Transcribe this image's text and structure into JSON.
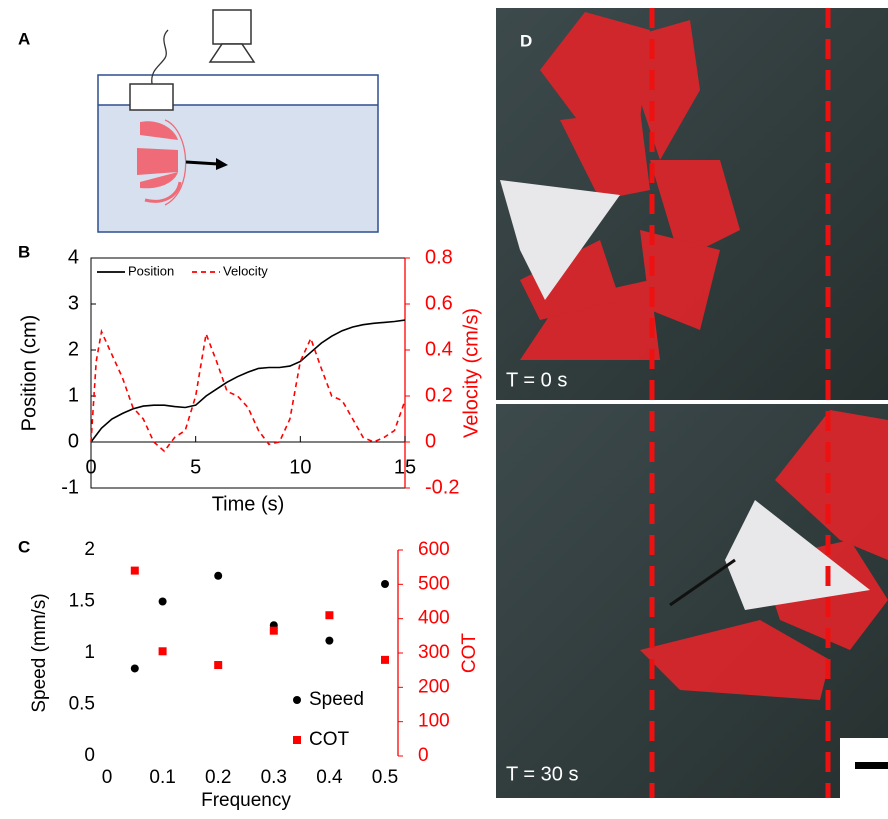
{
  "panel_labels": [
    "A",
    "B",
    "C",
    "D"
  ],
  "photos": [
    {
      "caption": "T = 0 s"
    },
    {
      "caption": "T = 30 s"
    }
  ],
  "chart_data": [
    {
      "type": "line",
      "frame": true,
      "x_label": "Time (s)",
      "y_label": "Position (cm)",
      "y2_label": "Velocity (cm/s)",
      "x": [
        0,
        0.25,
        0.5,
        1,
        1.5,
        2,
        2.5,
        3,
        3.5,
        4,
        4.5,
        5,
        5.5,
        6,
        6.5,
        7,
        7.5,
        8,
        8.5,
        9,
        9.5,
        10,
        10.5,
        11,
        11.5,
        12,
        12.5,
        13,
        13.5,
        14,
        14.5,
        15
      ],
      "series": [
        {
          "name": "Position",
          "color": "#000000",
          "line_style": "solid",
          "values": [
            0,
            0.15,
            0.3,
            0.5,
            0.62,
            0.72,
            0.78,
            0.8,
            0.8,
            0.77,
            0.75,
            0.8,
            1.0,
            1.15,
            1.3,
            1.42,
            1.52,
            1.6,
            1.62,
            1.62,
            1.65,
            1.75,
            1.95,
            2.15,
            2.3,
            2.42,
            2.5,
            2.55,
            2.58,
            2.6,
            2.62,
            2.65
          ]
        },
        {
          "name": "Velocity",
          "color": "#ff0000",
          "line_style": "dashed",
          "axis": "y2",
          "values": [
            0,
            0.35,
            0.48,
            0.38,
            0.28,
            0.15,
            0.1,
            0.0,
            -0.04,
            0.02,
            0.05,
            0.2,
            0.47,
            0.35,
            0.22,
            0.2,
            0.15,
            0.05,
            -0.01,
            0.0,
            0.1,
            0.35,
            0.45,
            0.32,
            0.2,
            0.18,
            0.1,
            0.02,
            0.0,
            0.02,
            0.05,
            0.18
          ]
        }
      ],
      "xlim": [
        0,
        15
      ],
      "xticks": [
        0,
        5,
        10,
        15
      ],
      "ylim": [
        -1,
        4
      ],
      "yticks": [
        -1,
        0,
        1,
        2,
        3,
        4
      ],
      "y2lim": [
        -0.2,
        0.8
      ],
      "y2ticks": [
        -0.2,
        0,
        0.2,
        0.4,
        0.6,
        0.8
      ],
      "legend": "top-left"
    },
    {
      "type": "scatter",
      "frame": false,
      "x_label": "Frequency",
      "y_label": "Speed (mm/s)",
      "y2_label": "COT",
      "x": [
        0.05,
        0.1,
        0.2,
        0.3,
        0.4,
        0.5
      ],
      "series": [
        {
          "name": "Speed",
          "color": "#000000",
          "marker": "circle",
          "values": [
            0.85,
            1.5,
            1.75,
            1.27,
            1.12,
            1.67
          ]
        },
        {
          "name": "COT",
          "color": "#ff0000",
          "marker": "square",
          "axis": "y2",
          "values": [
            540,
            305,
            265,
            365,
            410,
            280
          ]
        }
      ],
      "xlim": [
        0,
        0.5
      ],
      "xticks": [
        0,
        0.1,
        0.2,
        0.3,
        0.4,
        0.5
      ],
      "ylim": [
        0,
        2
      ],
      "yticks": [
        0,
        0.5,
        1,
        1.5,
        2
      ],
      "y2lim": [
        0,
        600
      ],
      "y2ticks": [
        0,
        100,
        200,
        300,
        400,
        500,
        600
      ],
      "legend": "bottom-right"
    }
  ]
}
